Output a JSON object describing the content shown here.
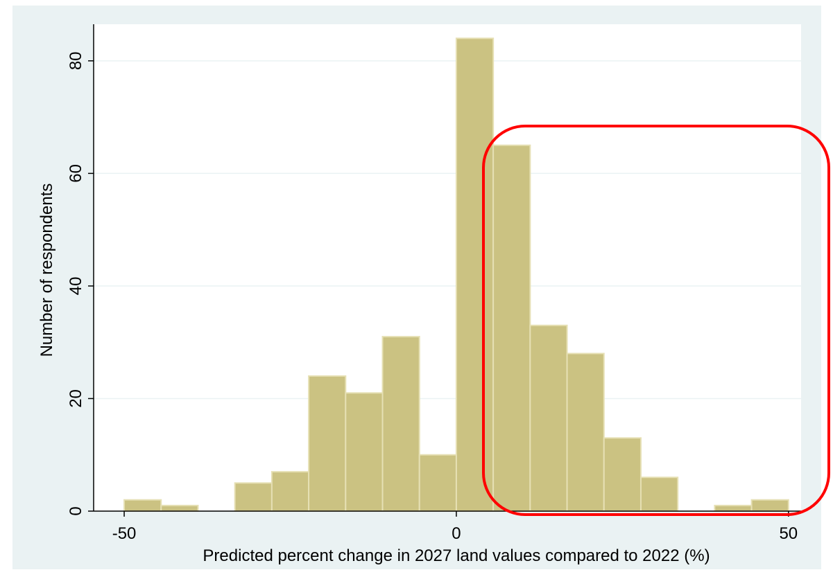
{
  "chart_data": {
    "type": "histogram",
    "xlabel": "Predicted percent change in 2027 land values compared to 2022 (%)",
    "ylabel": "Number of respondents",
    "bins": [
      -50,
      -44.444,
      -38.889,
      -33.333,
      -27.778,
      -22.222,
      -16.667,
      -11.111,
      -5.556,
      0,
      5.556,
      11.111,
      16.667,
      22.222,
      27.778,
      33.333,
      38.889,
      44.444,
      50
    ],
    "values": [
      2,
      1,
      0,
      5,
      7,
      24,
      21,
      31,
      10,
      84,
      65,
      33,
      28,
      13,
      6,
      0,
      1,
      2
    ],
    "color": "#cbc282",
    "xlim": [
      -54.6,
      51.9
    ],
    "xticks": [
      -50,
      0,
      50
    ],
    "ylim": [
      0,
      86.5
    ],
    "yticks": [
      0,
      20,
      40,
      60,
      80
    ],
    "grid": true
  }
}
